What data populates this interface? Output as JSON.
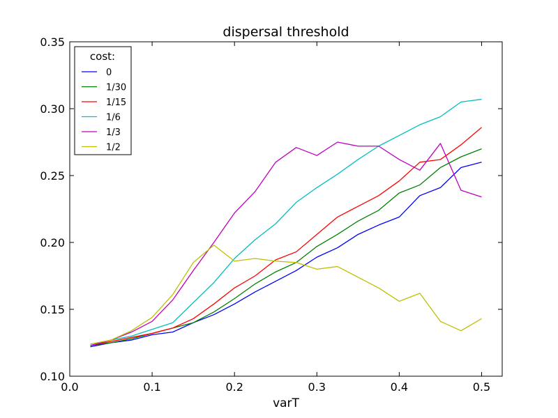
{
  "chart_data": {
    "type": "line",
    "title": "dispersal threshold",
    "xlabel": "varT",
    "ylabel": "",
    "xlim": [
      0.0,
      0.525
    ],
    "ylim": [
      0.1,
      0.35
    ],
    "x_ticks": [
      0.0,
      0.1,
      0.2,
      0.3,
      0.4,
      0.5
    ],
    "x_tick_labels": [
      "0.0",
      "0.1",
      "0.2",
      "0.3",
      "0.4",
      "0.5"
    ],
    "y_ticks": [
      0.1,
      0.15,
      0.2,
      0.25,
      0.3,
      0.35
    ],
    "y_tick_labels": [
      "0.10",
      "0.15",
      "0.20",
      "0.25",
      "0.30",
      "0.35"
    ],
    "grid": false,
    "legend": {
      "title": "cost:",
      "placement": "top-left"
    },
    "x": [
      0.025,
      0.05,
      0.075,
      0.1,
      0.125,
      0.15,
      0.175,
      0.2,
      0.225,
      0.25,
      0.275,
      0.3,
      0.325,
      0.35,
      0.375,
      0.4,
      0.425,
      0.45,
      0.475,
      0.5
    ],
    "series": [
      {
        "name": "0",
        "color": "#0000ff",
        "values": [
          0.122,
          0.125,
          0.127,
          0.131,
          0.133,
          0.14,
          0.146,
          0.154,
          0.163,
          0.171,
          0.179,
          0.189,
          0.196,
          0.206,
          0.213,
          0.219,
          0.235,
          0.241,
          0.256,
          0.26
        ]
      },
      {
        "name": "1/30",
        "color": "#008000",
        "values": [
          0.123,
          0.125,
          0.128,
          0.132,
          0.136,
          0.14,
          0.148,
          0.158,
          0.169,
          0.178,
          0.185,
          0.197,
          0.206,
          0.216,
          0.224,
          0.237,
          0.243,
          0.256,
          0.264,
          0.27
        ]
      },
      {
        "name": "1/15",
        "color": "#ff0000",
        "values": [
          0.123,
          0.126,
          0.129,
          0.132,
          0.136,
          0.143,
          0.154,
          0.166,
          0.175,
          0.187,
          0.193,
          0.206,
          0.219,
          0.227,
          0.235,
          0.246,
          0.26,
          0.262,
          0.273,
          0.286
        ]
      },
      {
        "name": "1/6",
        "color": "#00bfbf",
        "values": [
          0.123,
          0.127,
          0.13,
          0.135,
          0.14,
          0.155,
          0.17,
          0.188,
          0.202,
          0.214,
          0.23,
          0.241,
          0.251,
          0.262,
          0.272,
          0.28,
          0.288,
          0.294,
          0.305,
          0.307
        ]
      },
      {
        "name": "1/3",
        "color": "#bf00bf",
        "values": [
          0.123,
          0.127,
          0.133,
          0.141,
          0.157,
          0.179,
          0.2,
          0.222,
          0.238,
          0.26,
          0.271,
          0.265,
          0.275,
          0.272,
          0.272,
          0.262,
          0.254,
          0.274,
          0.239,
          0.234
        ]
      },
      {
        "name": "1/2",
        "color": "#bfbf00",
        "values": [
          0.124,
          0.127,
          0.134,
          0.144,
          0.161,
          0.185,
          0.198,
          0.186,
          0.188,
          0.186,
          0.185,
          0.18,
          0.182,
          0.174,
          0.166,
          0.156,
          0.162,
          0.141,
          0.134,
          0.143
        ]
      }
    ]
  }
}
